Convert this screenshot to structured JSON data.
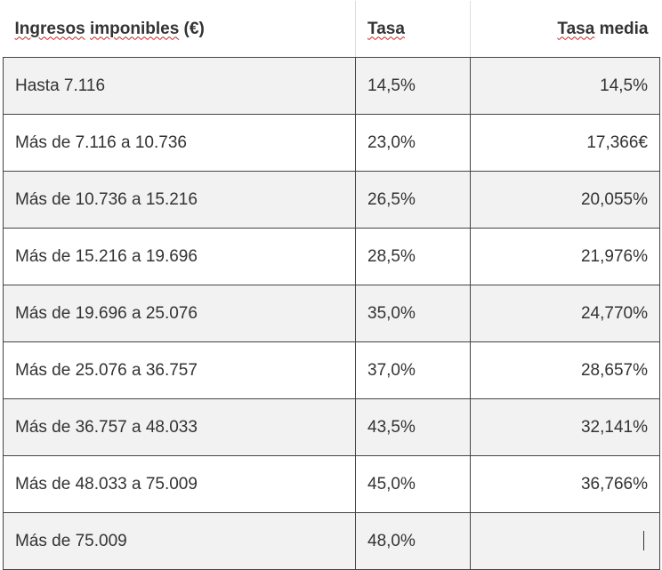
{
  "header": {
    "col1_word1": "Ingresos",
    "col1_word2": "imponibles",
    "col1_rest": " (€)",
    "col2": "Tasa",
    "col3_word1": "Tasa",
    "col3_rest": " media"
  },
  "rows": [
    {
      "range": "Hasta 7.116",
      "rate": "14,5%",
      "avg": "14,5%"
    },
    {
      "range": "Más de 7.116 a 10.736",
      "rate": "23,0%",
      "avg": "17,366€"
    },
    {
      "range": "Más de 10.736 a 15.216",
      "rate": "26,5%",
      "avg": "20,055%"
    },
    {
      "range": "Más de 15.216 a 19.696",
      "rate": "28,5%",
      "avg": "21,976%"
    },
    {
      "range": "Más de 19.696 a 25.076",
      "rate": "35,0%",
      "avg": "24,770%"
    },
    {
      "range": "Más de 25.076 a 36.757",
      "rate": "37,0%",
      "avg": "28,657%"
    },
    {
      "range": "Más de 36.757 a 48.033",
      "rate": "43,5%",
      "avg": "32,141%"
    },
    {
      "range": "Más de 48.033 a 75.009",
      "rate": "45,0%",
      "avg": "36,766%"
    },
    {
      "range": "Más de 75.009",
      "rate": "48,0%",
      "avg": ""
    }
  ]
}
